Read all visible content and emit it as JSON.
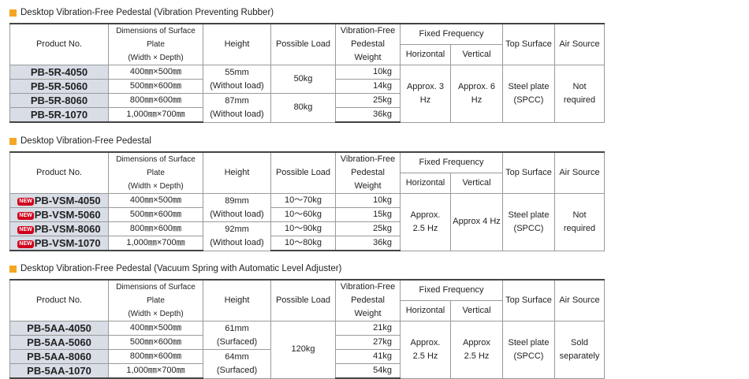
{
  "header": {
    "product": "Product No.",
    "dimensions": "Dimensions of Surface Plate",
    "dimensions_sub": "(Width × Depth)",
    "height": "Height",
    "load": "Possible Load",
    "weight": "Vibration-Free Pedestal Weight",
    "frequency": "Fixed Frequency",
    "horizontal": "Horizontal",
    "vertical": "Vertical",
    "top_surface": "Top Surface",
    "air_source": "Air Source"
  },
  "sections": [
    {
      "title": "Desktop Vibration-Free Pedestal (Vibration Preventing Rubber)",
      "rows": [
        {
          "product": "PB-5R-4050",
          "dimensions": "400㎜×500㎜",
          "weight": "10kg"
        },
        {
          "product": "PB-5R-5060",
          "dimensions": "500㎜×600㎜",
          "weight": "14kg"
        },
        {
          "product": "PB-5R-8060",
          "dimensions": "800㎜×600㎜",
          "weight": "25kg"
        },
        {
          "product": "PB-5R-1070",
          "dimensions": "1,000㎜×700㎜",
          "weight": "36kg"
        }
      ],
      "height": [
        [
          "55mm",
          "(Without load)"
        ],
        [
          "87mm",
          "(Without load)"
        ]
      ],
      "load": [
        "50kg",
        "80kg"
      ],
      "horizontal": [
        "Approx. 3 Hz"
      ],
      "vertical": [
        "Approx. 6 Hz"
      ],
      "top_surface": [
        "Steel plate",
        "(SPCC)"
      ],
      "air_source": [
        "Not required"
      ]
    },
    {
      "title": "Desktop Vibration-Free Pedestal",
      "rows": [
        {
          "badge": "NEW",
          "product": "PB-VSM-4050",
          "dimensions": "400㎜×500㎜",
          "weight": "10kg"
        },
        {
          "badge": "NEW",
          "product": "PB-VSM-5060",
          "dimensions": "500㎜×600㎜",
          "weight": "15kg"
        },
        {
          "badge": "NEW",
          "product": "PB-VSM-8060",
          "dimensions": "800㎜×600㎜",
          "weight": "25kg"
        },
        {
          "badge": "NEW",
          "product": "PB-VSM-1070",
          "dimensions": "1,000㎜×700㎜",
          "weight": "36kg"
        }
      ],
      "height": [
        [
          "89mm",
          "(Without load)"
        ],
        [
          "92mm",
          "(Without load)"
        ]
      ],
      "load": [
        "10～70kg",
        "10～60kg",
        "10～90kg",
        "10～80kg"
      ],
      "horizontal": [
        "Approx.",
        "2.5 Hz"
      ],
      "vertical": [
        "Approx 4 Hz"
      ],
      "top_surface": [
        "Steel plate",
        "(SPCC)"
      ],
      "air_source": [
        "Not required"
      ]
    },
    {
      "title": "Desktop Vibration-Free Pedestal (Vacuum Spring with Automatic Level Adjuster)",
      "rows": [
        {
          "product": "PB-5AA-4050",
          "dimensions": "400㎜×500㎜",
          "weight": "21kg"
        },
        {
          "product": "PB-5AA-5060",
          "dimensions": "500㎜×600㎜",
          "weight": "27kg"
        },
        {
          "product": "PB-5AA-8060",
          "dimensions": "800㎜×600㎜",
          "weight": "41kg"
        },
        {
          "product": "PB-5AA-1070",
          "dimensions": "1,000㎜×700㎜",
          "weight": "54kg"
        }
      ],
      "height": [
        [
          "61mm",
          "(Surfaced)"
        ],
        [
          "64mm",
          "(Surfaced)"
        ]
      ],
      "load": [
        "120kg"
      ],
      "horizontal": [
        "Approx.",
        "2.5 Hz"
      ],
      "vertical": [
        "Approx",
        "2.5 Hz"
      ],
      "top_surface": [
        "Steel plate",
        "(SPCC)"
      ],
      "air_source": [
        "Sold",
        "separately"
      ]
    }
  ]
}
